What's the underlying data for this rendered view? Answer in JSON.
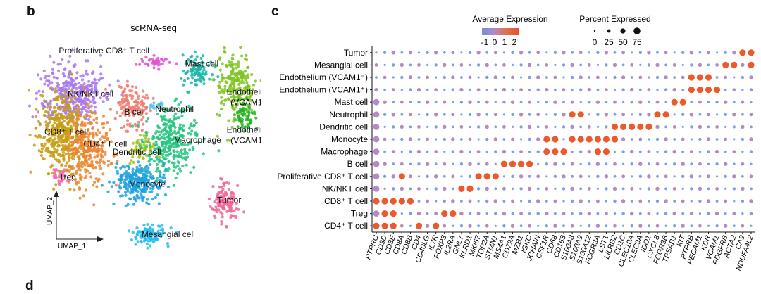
{
  "panel_b_label": "b",
  "panel_c_label": "c",
  "panel_d_label": "d",
  "chart_data": [
    {
      "type": "scatter",
      "title": "scRNA-seq",
      "xlabel": "UMAP_1",
      "ylabel": "UMAP_2",
      "clusters": [
        {
          "name": "Proliferative CD8⁺ T cell",
          "color": "#e055d4",
          "center": [
            5.4,
            9.2
          ],
          "spread": [
            0.35,
            0.15
          ],
          "n": 40
        },
        {
          "name": "Mast cell",
          "color": "#1bb6a6",
          "center": [
            7.4,
            8.8
          ],
          "spread": [
            0.35,
            0.4
          ],
          "n": 90
        },
        {
          "name": "Endothelium (VCAM1⁻)",
          "color": "#7fc420",
          "center": [
            9.2,
            7.9
          ],
          "spread": [
            0.45,
            0.85
          ],
          "n": 220
        },
        {
          "name": "Endothelium (VCAM1⁺)",
          "color": "#23b32b",
          "center": [
            9.6,
            6.5
          ],
          "spread": [
            0.25,
            0.35
          ],
          "n": 60
        },
        {
          "name": "NK/NKT cell",
          "color": "#a879ef",
          "center": [
            1.4,
            7.6
          ],
          "spread": [
            0.75,
            0.75
          ],
          "n": 380
        },
        {
          "name": "B cell",
          "color": "#f07b70",
          "center": [
            4.3,
            6.9
          ],
          "spread": [
            0.45,
            0.65
          ],
          "n": 130
        },
        {
          "name": "Neutrophil",
          "color": "#5fc2f0",
          "center": [
            5.4,
            7.0
          ],
          "spread": [
            0.18,
            0.1
          ],
          "n": 15
        },
        {
          "name": "CD8⁺ T cell",
          "color": "#c79d12",
          "center": [
            0.9,
            5.6
          ],
          "spread": [
            0.55,
            0.95
          ],
          "n": 380
        },
        {
          "name": "CD4⁺ T cell",
          "color": "#ed8530",
          "center": [
            2.1,
            4.9
          ],
          "spread": [
            0.55,
            0.9
          ],
          "n": 300
        },
        {
          "name": "Treg",
          "color": "#f06fb8",
          "center": [
            0.9,
            3.5
          ],
          "spread": [
            0.2,
            0.2
          ],
          "n": 30
        },
        {
          "name": "Dendritic cell",
          "color": "#a9be1c",
          "center": [
            4.8,
            4.8
          ],
          "spread": [
            0.35,
            0.3
          ],
          "n": 60
        },
        {
          "name": "Macrophage",
          "color": "#25c57e",
          "center": [
            6.1,
            5.2
          ],
          "spread": [
            0.65,
            0.75
          ],
          "n": 300
        },
        {
          "name": "Monocyte",
          "color": "#1fa2df",
          "center": [
            4.6,
            3.2
          ],
          "spread": [
            0.6,
            0.45
          ],
          "n": 260
        },
        {
          "name": "Tumor",
          "color": "#f1699a",
          "center": [
            8.7,
            2.2
          ],
          "spread": [
            0.3,
            0.5
          ],
          "n": 130
        },
        {
          "name": "Mesangial cell",
          "color": "#27bcec",
          "center": [
            5.1,
            0.6
          ],
          "spread": [
            0.4,
            0.25
          ],
          "n": 110
        }
      ]
    },
    {
      "type": "scatter",
      "subtype": "dotplot",
      "xlabel": "",
      "ylabel": "",
      "color_legend": {
        "title": "Average Expression",
        "ticks": [
          "-1",
          "0",
          "1",
          "2"
        ],
        "colors": [
          "#6f8fe0",
          "#b489c0",
          "#e0704f",
          "#e8542a"
        ]
      },
      "size_legend": {
        "title": "Percent Expressed",
        "ticks": [
          "0",
          "25",
          "50",
          "75"
        ]
      },
      "cell_types": [
        "Tumor",
        "Mesangial cell",
        "Endothelium (VCAM1⁻)",
        "Endothelium (VCAM1⁺)",
        "Mast cell",
        "Neutrophil",
        "Dendritic cell",
        "Monocyte",
        "Macrophage",
        "B cell",
        "Proliferative CD8⁺ T cell",
        "NK/NKT cell",
        "CD8⁺ T cell",
        "Treg",
        "CD4⁺ T cell"
      ],
      "genes": [
        "PTPRC",
        "CD3D",
        "CD3E",
        "CD8A",
        "CD8B",
        "CD4",
        "CD40LG",
        "IL7R",
        "FOXP3",
        "IL2RA",
        "GNLY",
        "KLRD1",
        "MKI67",
        "TOP2A",
        "STMN1",
        "MS4A1",
        "CD79A",
        "MZB1",
        "IGKC",
        "JCHAIN",
        "CSF1R",
        "CD68",
        "CD163",
        "S100A8",
        "S100A9",
        "S100A12",
        "FCGR3A",
        "LST1",
        "LILRB2",
        "CD1C",
        "CLEC10A",
        "CLEC9A",
        "IDO1",
        "CXCL8",
        "FCGR3B",
        "TPSAB1",
        "KIT",
        "PTPRB",
        "PECAM1",
        "KDR",
        "VCAM1",
        "PDGFRB",
        "ACTA2",
        "CA9",
        "NDUFA4L2"
      ],
      "high_expression": [
        {
          "cell": "Tumor",
          "genes": [
            "CA9",
            "NDUFA4L2"
          ]
        },
        {
          "cell": "Mesangial cell",
          "genes": [
            "PDGFRB",
            "ACTA2",
            "NDUFA4L2"
          ]
        },
        {
          "cell": "Endothelium (VCAM1⁻)",
          "genes": [
            "PTPRB",
            "PECAM1",
            "KDR"
          ]
        },
        {
          "cell": "Endothelium (VCAM1⁺)",
          "genes": [
            "PTPRB",
            "PECAM1",
            "KDR",
            "VCAM1"
          ]
        },
        {
          "cell": "Mast cell",
          "genes": [
            "TPSAB1",
            "KIT"
          ]
        },
        {
          "cell": "Neutrophil",
          "genes": [
            "S100A8",
            "S100A9",
            "CXCL8",
            "FCGR3B"
          ]
        },
        {
          "cell": "Dendritic cell",
          "genes": [
            "LILRB2",
            "CD1C",
            "CLEC10A",
            "CLEC9A",
            "IDO1"
          ]
        },
        {
          "cell": "Monocyte",
          "genes": [
            "CSF1R",
            "CD68",
            "S100A8",
            "S100A9",
            "S100A12",
            "FCGR3A",
            "LST1",
            "LILRB2"
          ]
        },
        {
          "cell": "Macrophage",
          "genes": [
            "CSF1R",
            "CD68",
            "CD163",
            "FCGR3A",
            "LST1"
          ]
        },
        {
          "cell": "B cell",
          "genes": [
            "MS4A1",
            "CD79A",
            "MZB1",
            "IGKC"
          ]
        },
        {
          "cell": "Proliferative CD8⁺ T cell",
          "genes": [
            "MKI67",
            "TOP2A",
            "STMN1",
            "CD8A"
          ]
        },
        {
          "cell": "NK/NKT cell",
          "genes": [
            "GNLY",
            "KLRD1"
          ]
        },
        {
          "cell": "CD8⁺ T cell",
          "genes": [
            "PTPRC",
            "CD3D",
            "CD3E",
            "CD8A",
            "CD8B"
          ]
        },
        {
          "cell": "Treg",
          "genes": [
            "CD3D",
            "CD3E",
            "FOXP3",
            "IL2RA"
          ]
        },
        {
          "cell": "CD4⁺ T cell",
          "genes": [
            "PTPRC",
            "CD3D",
            "CD3E",
            "CD4",
            "IL7R"
          ]
        }
      ]
    }
  ]
}
